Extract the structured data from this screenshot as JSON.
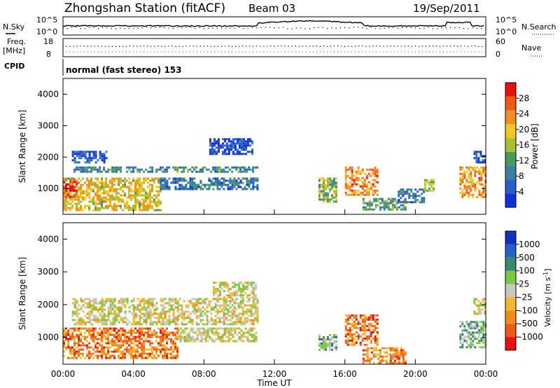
{
  "header": {
    "station": "Zhongshan Station (fitACF)",
    "beam": "Beam 03",
    "date": "19/Sep/2011"
  },
  "sky_panel": {
    "left_label": "N.Sky",
    "right_label": "N.Search",
    "left_ticks": [
      "10^5",
      "10^0"
    ],
    "right_ticks": [
      "10^5",
      "10^0"
    ]
  },
  "freq_panel": {
    "left_label_line1": "Freq.",
    "left_label_line2": "[MHz]",
    "right_label": "Nave",
    "left_ticks": [
      "18",
      "8"
    ],
    "right_ticks": [
      "60",
      "0"
    ]
  },
  "cpid": {
    "label": "CPID",
    "text": "normal (fast stereo) 153"
  },
  "x_axis": {
    "label": "Time UT",
    "ticks": [
      "00:00",
      "04:00",
      "08:00",
      "12:00",
      "16:00",
      "20:00",
      "00:00"
    ],
    "range_hours": [
      0,
      24
    ]
  },
  "colors": {
    "power": [
      "#1030e0",
      "#2860c8",
      "#3a7fa0",
      "#4a9a60",
      "#a8c030",
      "#f0c820",
      "#f09020",
      "#f05818",
      "#e81010"
    ],
    "velocity": [
      "#e81010",
      "#f05818",
      "#f08a18",
      "#f0b830",
      "#c8c8c0",
      "#7ac840",
      "#3a8a70",
      "#2860c8",
      "#1030c0"
    ]
  },
  "chart_data": [
    {
      "type": "heatmap",
      "ylabel": "Slant Range [km]",
      "xlabel": "Time UT",
      "ylim": [
        180,
        4500
      ],
      "yticks": [
        1000,
        2000,
        3000,
        4000
      ],
      "colorbar": {
        "label": "Power [dB]",
        "ticks": [
          "4",
          "8",
          "12",
          "16",
          "20",
          "24",
          "28"
        ],
        "range": [
          0,
          32
        ]
      },
      "regions": [
        {
          "t0": 0.0,
          "t1": 5.5,
          "r0": 300,
          "r1": 1350,
          "level": 0.6
        },
        {
          "t0": 0.0,
          "t1": 0.8,
          "r0": 700,
          "r1": 1300,
          "level": 0.92
        },
        {
          "t0": 0.6,
          "t1": 11.0,
          "r0": 1500,
          "r1": 1700,
          "level": 0.3
        },
        {
          "t0": 0.5,
          "t1": 2.5,
          "r0": 1850,
          "r1": 2200,
          "level": 0.15
        },
        {
          "t0": 5.5,
          "t1": 11.0,
          "r0": 1000,
          "r1": 1350,
          "level": 0.25
        },
        {
          "t0": 8.3,
          "t1": 10.8,
          "r0": 2100,
          "r1": 2600,
          "level": 0.08
        },
        {
          "t0": 14.5,
          "t1": 15.5,
          "r0": 600,
          "r1": 1350,
          "level": 0.45
        },
        {
          "t0": 16.0,
          "t1": 17.8,
          "r0": 800,
          "r1": 1700,
          "level": 0.75
        },
        {
          "t0": 17.0,
          "t1": 19.5,
          "r0": 300,
          "r1": 700,
          "level": 0.38
        },
        {
          "t0": 19.0,
          "t1": 20.5,
          "r0": 550,
          "r1": 1000,
          "level": 0.25
        },
        {
          "t0": 20.5,
          "t1": 21.0,
          "r0": 900,
          "r1": 1300,
          "level": 0.5
        },
        {
          "t0": 22.5,
          "t1": 24.0,
          "r0": 700,
          "r1": 1700,
          "level": 0.72
        },
        {
          "t0": 23.3,
          "t1": 24.0,
          "r0": 1800,
          "r1": 2200,
          "level": 0.12
        }
      ]
    },
    {
      "type": "heatmap",
      "ylabel": "Slant Range [km]",
      "xlabel": "Time UT",
      "ylim": [
        180,
        4500
      ],
      "yticks": [
        1000,
        2000,
        3000,
        4000
      ],
      "colorbar": {
        "label": "Velocity [m s^-1]",
        "ticks": [
          "-1000",
          "-500",
          "-100",
          "-25",
          "25",
          "100",
          "500",
          "1000"
        ],
        "range": [
          -1500,
          1500
        ]
      },
      "regions": [
        {
          "t0": 0.0,
          "t1": 6.5,
          "r0": 350,
          "r1": 1300,
          "level": 0.25
        },
        {
          "t0": 0.5,
          "t1": 11.0,
          "r0": 1400,
          "r1": 2200,
          "level": 0.48
        },
        {
          "t0": 6.5,
          "t1": 11.0,
          "r0": 900,
          "r1": 1300,
          "level": 0.48
        },
        {
          "t0": 8.5,
          "t1": 11.0,
          "r0": 2200,
          "r1": 2700,
          "level": 0.48
        },
        {
          "t0": 14.5,
          "t1": 15.5,
          "r0": 600,
          "r1": 1100,
          "level": 0.62
        },
        {
          "t0": 16.0,
          "t1": 17.8,
          "r0": 800,
          "r1": 1700,
          "level": 0.22
        },
        {
          "t0": 17.0,
          "t1": 19.5,
          "r0": 250,
          "r1": 700,
          "level": 0.27
        },
        {
          "t0": 22.5,
          "t1": 24.0,
          "r0": 700,
          "r1": 1500,
          "level": 0.62
        },
        {
          "t0": 23.3,
          "t1": 24.0,
          "r0": 1700,
          "r1": 2200,
          "level": 0.48
        }
      ]
    }
  ]
}
